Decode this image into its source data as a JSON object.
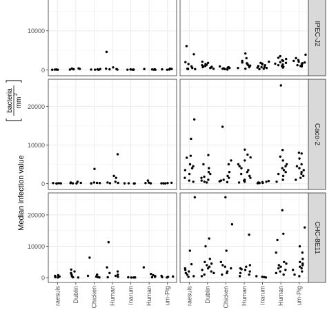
{
  "chart_data": {
    "type": "scatter",
    "ylabel": "Median infection value",
    "ylabel_unit_numerator": "bacteria",
    "ylabel_unit_denominator": "mm",
    "ylabel_unit_exponent": "2",
    "categories": [
      "raesuis",
      "Dublin",
      "Chicken",
      "Human",
      "inarum",
      "Human",
      "um-Pig"
    ],
    "grid": true,
    "point_color": "#000000",
    "panel_strip_color": "#d9d9d9",
    "rows": [
      {
        "label": "IPEC-J2",
        "yticks": [
          "10000",
          "0"
        ],
        "yticks_values": [
          10000,
          0
        ],
        "ylim": [
          -1500,
          20000
        ],
        "left": [
          [
            40,
            80,
            90,
            120,
            60
          ],
          [
            150,
            260,
            90,
            330,
            400,
            200
          ],
          [
            130,
            60,
            100,
            230,
            40
          ],
          [
            4600,
            650,
            320,
            150,
            80,
            230
          ],
          [
            50,
            100,
            80,
            60,
            130
          ],
          [
            70,
            120,
            160,
            60,
            220
          ],
          [
            110,
            60,
            240,
            320,
            140
          ]
        ],
        "right": [
          [
            6100,
            4000,
            2000,
            1500,
            900,
            500,
            300,
            200,
            200,
            300
          ],
          [
            2100,
            1800,
            1500,
            1300,
            1200,
            1000,
            900,
            800,
            700,
            600,
            500,
            300
          ],
          [
            900,
            700,
            600,
            500,
            400,
            300,
            200,
            150,
            100
          ],
          [
            4200,
            3000,
            2300,
            1900,
            1700,
            1500,
            1300,
            1100,
            900,
            700,
            500,
            300
          ],
          [
            2100,
            1800,
            1600,
            1400,
            1200,
            1000,
            800,
            700,
            600,
            500,
            300,
            200
          ],
          [
            3500,
            3100,
            2800,
            2500,
            2300,
            2000,
            1800,
            1600,
            1400,
            1200,
            1000,
            800,
            600
          ],
          [
            3900,
            3000,
            2500,
            2300,
            2100,
            1900,
            1700,
            1500,
            1300,
            1200,
            1000,
            900
          ]
        ]
      },
      {
        "label": "Caco-2",
        "yticks": [
          "20000",
          "10000",
          "0"
        ],
        "yticks_values": [
          20000,
          10000,
          0
        ],
        "ylim": [
          -1500,
          27000
        ],
        "left": [
          [
            50,
            90,
            120,
            60,
            150
          ],
          [
            500,
            300,
            200,
            120,
            80,
            60
          ],
          [
            3800,
            300,
            200,
            150,
            100,
            60
          ],
          [
            7600,
            2000,
            1500,
            500,
            300,
            200,
            120
          ],
          [
            50,
            80,
            100,
            60
          ],
          [
            800,
            250,
            150,
            90
          ],
          [
            150,
            230,
            80,
            90,
            60
          ]
        ],
        "right": [
          [
            16600,
            11600,
            7200,
            6700,
            5000,
            4500,
            4000,
            3500,
            2500,
            1500,
            800,
            500
          ],
          [
            7400,
            5000,
            4000,
            3000,
            2500,
            1800,
            1500,
            1000,
            800,
            500,
            300
          ],
          [
            14700,
            6000,
            5000,
            3000,
            2000,
            1500,
            1000,
            800,
            600,
            400
          ],
          [
            8800,
            7500,
            6800,
            6000,
            5000,
            4500,
            4000,
            3500,
            3000,
            2500,
            2000,
            1500,
            1000,
            800,
            500,
            300
          ],
          [
            700,
            500,
            400,
            300,
            250,
            200,
            150,
            100
          ],
          [
            25400,
            8700,
            7000,
            6000,
            5000,
            4500,
            4000,
            3500,
            3000,
            2500,
            2000,
            1000,
            500
          ],
          [
            8000,
            7800,
            6500,
            5000,
            4500,
            4000,
            3500,
            3000,
            2500,
            2000,
            1500,
            1000
          ]
        ]
      },
      {
        "label": "CHC-8E11",
        "yticks": [
          "20000",
          "10000",
          "0"
        ],
        "yticks_values": [
          20000,
          10000,
          0
        ],
        "ylim": [
          -1500,
          27000
        ],
        "left": [
          [
            200,
            400,
            600,
            800,
            300,
            100
          ],
          [
            2600,
            2000,
            1500,
            1000,
            600,
            300,
            150,
            80
          ],
          [
            6400,
            1000,
            600,
            400,
            200,
            100
          ],
          [
            11300,
            3300,
            2000,
            1500,
            1000,
            600,
            300,
            150
          ],
          [
            100,
            150,
            80,
            60
          ],
          [
            3300,
            1200,
            800,
            500,
            300,
            150
          ],
          [
            600,
            400,
            300,
            200,
            100
          ]
        ],
        "right": [
          [
            25600,
            8600,
            4300,
            3000,
            2500,
            2000,
            1500,
            1000,
            500,
            300
          ],
          [
            12500,
            10000,
            6000,
            5000,
            4500,
            4000,
            3500,
            3000,
            2500,
            2000,
            1500,
            1000,
            500
          ],
          [
            25600,
            17000,
            8600,
            5000,
            4000,
            3500,
            3000,
            2000,
            1500,
            1000
          ],
          [
            13700,
            4000,
            3500,
            3000,
            2700,
            2500,
            2000,
            1500,
            1000,
            500
          ],
          [
            500,
            300,
            200,
            100
          ],
          [
            21500,
            14000,
            12000,
            8000,
            5000,
            4500,
            4000,
            3500,
            3000,
            2500,
            2000,
            1500,
            1000
          ],
          [
            16000,
            10000,
            8000,
            6000,
            5000,
            4500,
            4000,
            3500,
            3000,
            2500,
            2000,
            1000,
            500
          ]
        ]
      }
    ]
  }
}
